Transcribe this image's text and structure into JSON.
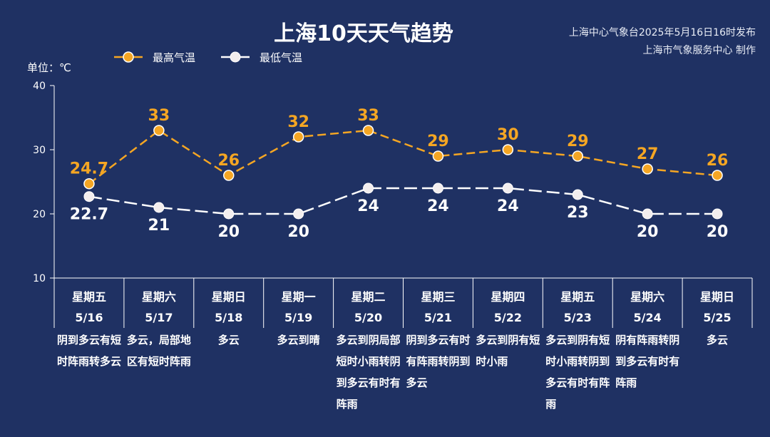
{
  "header": {
    "title": "上海10天天气趋势",
    "issuer_line1": "上海中心气象台2025年5月16日16时发布",
    "issuer_line2": "上海市气象服务中心 制作",
    "unit": "单位：℃"
  },
  "colors": {
    "background": "#1f3163",
    "high": "#f5a623",
    "low": "#ffffff"
  },
  "chart_data": {
    "type": "line",
    "title": "上海10天天气趋势",
    "ylabel": "单位：℃",
    "ylim": [
      10,
      40
    ],
    "yticks": [
      10,
      20,
      30,
      40
    ],
    "grid": false,
    "legend_position": "top-left",
    "categories": [
      "5/16",
      "5/17",
      "5/18",
      "5/19",
      "5/20",
      "5/21",
      "5/22",
      "5/23",
      "5/24",
      "5/25"
    ],
    "series": [
      {
        "name": "最高气温",
        "values": [
          24.7,
          33,
          26,
          32,
          33,
          29,
          30,
          29,
          27,
          26
        ],
        "labels": [
          "24.7",
          "33",
          "26",
          "32",
          "33",
          "29",
          "30",
          "29",
          "27",
          "26"
        ],
        "color": "#f5a623"
      },
      {
        "name": "最低气温",
        "values": [
          22.7,
          21,
          20,
          20,
          24,
          24,
          24,
          23,
          20,
          20
        ],
        "labels": [
          "22.7",
          "21",
          "20",
          "20",
          "24",
          "24",
          "24",
          "23",
          "20",
          "20"
        ],
        "color": "#ffffff"
      }
    ]
  },
  "days": [
    {
      "name": "星期五",
      "date": "5/16",
      "weather": "阴到多云有短时阵雨转多云"
    },
    {
      "name": "星期六",
      "date": "5/17",
      "weather": "多云，局部地区有短时阵雨"
    },
    {
      "name": "星期日",
      "date": "5/18",
      "weather": "多云"
    },
    {
      "name": "星期一",
      "date": "5/19",
      "weather": "多云到晴"
    },
    {
      "name": "星期二",
      "date": "5/20",
      "weather": "多云到阴局部短时小雨转阴到多云有时有阵雨"
    },
    {
      "name": "星期三",
      "date": "5/21",
      "weather": "阴到多云有时有阵雨转阴到多云"
    },
    {
      "name": "星期四",
      "date": "5/22",
      "weather": "多云到阴有短时小雨"
    },
    {
      "name": "星期五",
      "date": "5/23",
      "weather": "多云到阴有短时小雨转阴到多云有时有阵雨"
    },
    {
      "name": "星期六",
      "date": "5/24",
      "weather": "阴有阵雨转阴到多云有时有阵雨"
    },
    {
      "name": "星期日",
      "date": "5/25",
      "weather": "多云"
    }
  ]
}
